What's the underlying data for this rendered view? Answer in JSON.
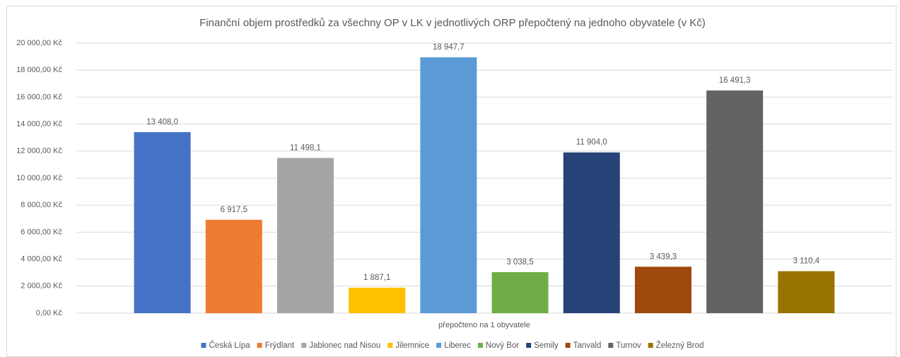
{
  "chart_data": {
    "type": "bar",
    "title": "Finanční objem prostředků za všechny OP v LK v jednotlivých ORP přepočtený na jednoho obyvatele (v Kč)",
    "categories": [
      "přepočteno na 1 obyvatele"
    ],
    "series": [
      {
        "name": "Česká Lípa",
        "color": "#4472c4",
        "values": [
          13408.0
        ],
        "value_labels": [
          "13 408,0"
        ]
      },
      {
        "name": "Frýdlant",
        "color": "#ed7d31",
        "values": [
          6917.5
        ],
        "value_labels": [
          "6 917,5"
        ]
      },
      {
        "name": "Jablonec nad Nisou",
        "color": "#a5a5a5",
        "values": [
          11498.1
        ],
        "value_labels": [
          "11 498,1"
        ]
      },
      {
        "name": "Jilemnice",
        "color": "#ffc000",
        "values": [
          1887.1
        ],
        "value_labels": [
          "1 887,1"
        ]
      },
      {
        "name": "Liberec",
        "color": "#5b9bd5",
        "values": [
          18947.7
        ],
        "value_labels": [
          "18 947,7"
        ]
      },
      {
        "name": "Nový Bor",
        "color": "#70ad47",
        "values": [
          3038.5
        ],
        "value_labels": [
          "3 038,5"
        ]
      },
      {
        "name": "Semily",
        "color": "#264478",
        "values": [
          11904.0
        ],
        "value_labels": [
          "11 904,0"
        ]
      },
      {
        "name": "Tanvald",
        "color": "#9e480e",
        "values": [
          3439.3
        ],
        "value_labels": [
          "3 439,3"
        ]
      },
      {
        "name": "Turnov",
        "color": "#636363",
        "values": [
          16491.3
        ],
        "value_labels": [
          "16 491,3"
        ]
      },
      {
        "name": "Železný Brod",
        "color": "#997300",
        "values": [
          3110.4
        ],
        "value_labels": [
          "3 110,4"
        ]
      }
    ],
    "ylim": [
      0,
      20000
    ],
    "yticks": [
      {
        "value": 0,
        "label": "0,00 Kč"
      },
      {
        "value": 2000,
        "label": "2 000,00 Kč"
      },
      {
        "value": 4000,
        "label": "4 000,00 Kč"
      },
      {
        "value": 6000,
        "label": "6 000,00 Kč"
      },
      {
        "value": 8000,
        "label": "8 000,00 Kč"
      },
      {
        "value": 10000,
        "label": "10 000,00 Kč"
      },
      {
        "value": 12000,
        "label": "12 000,00 Kč"
      },
      {
        "value": 14000,
        "label": "14 000,00 Kč"
      },
      {
        "value": 16000,
        "label": "16 000,00 Kč"
      },
      {
        "value": 18000,
        "label": "18 000,00 Kč"
      },
      {
        "value": 20000,
        "label": "20 000,00 Kč"
      }
    ],
    "grid": true,
    "legend": "bottom"
  }
}
